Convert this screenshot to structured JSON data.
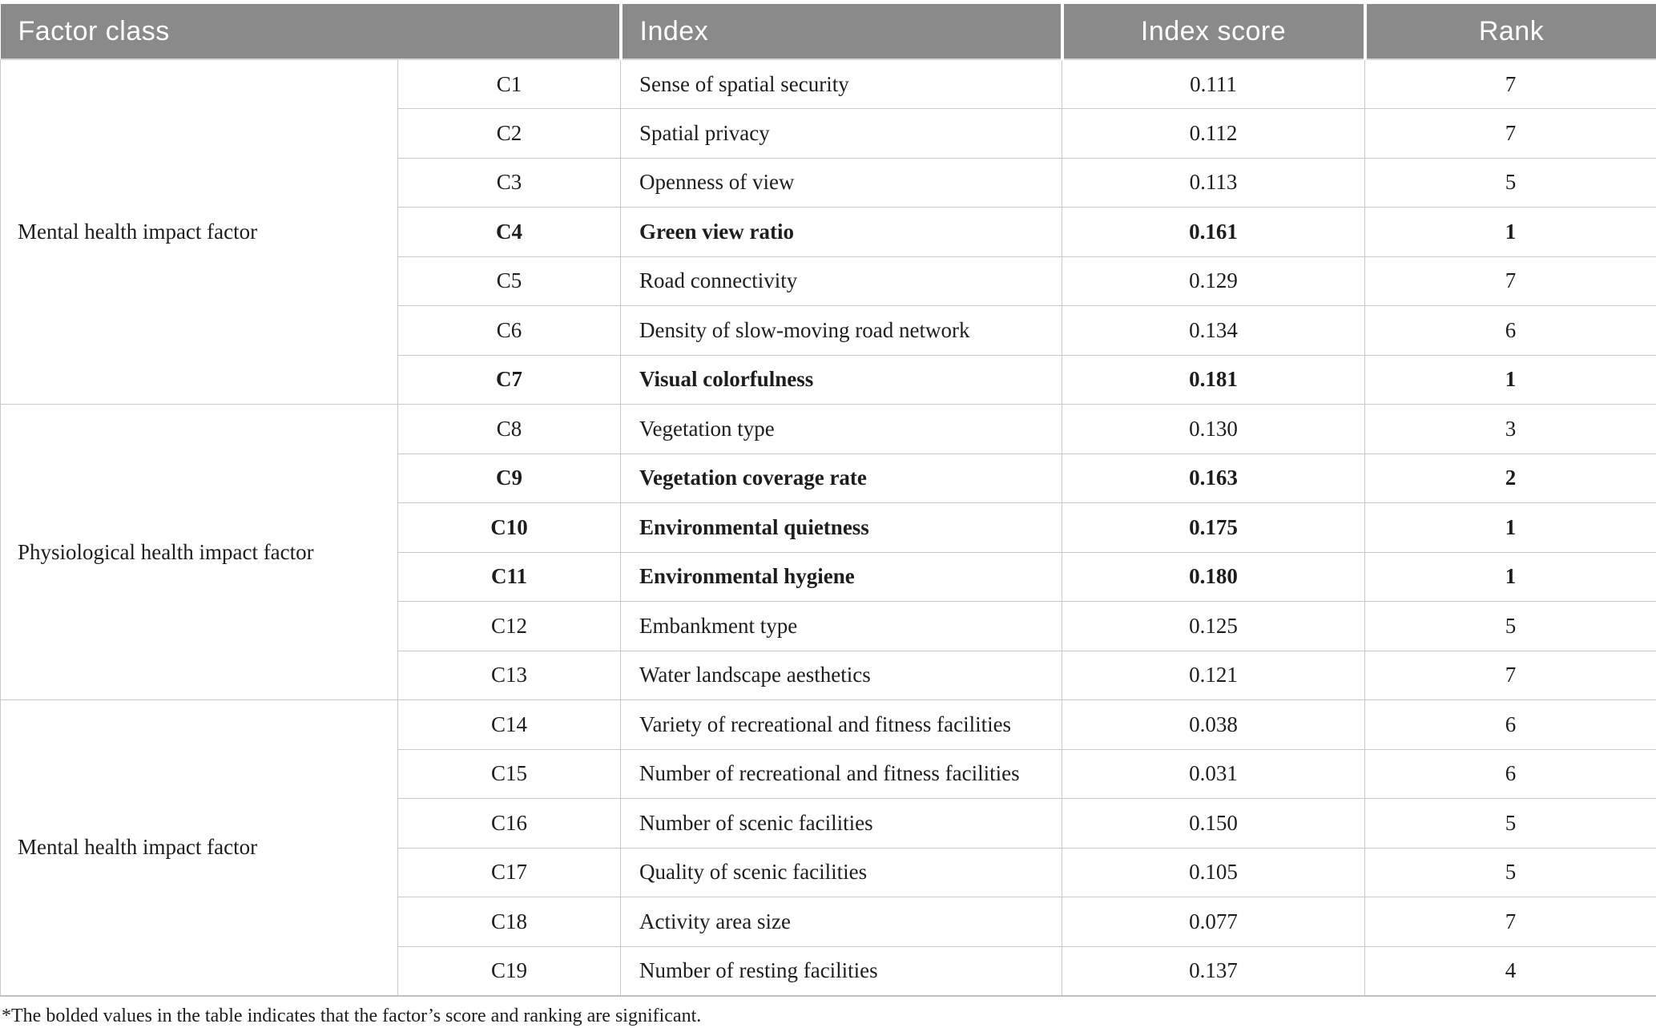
{
  "header": {
    "factor_class": "Factor class",
    "index": "Index",
    "index_score": "Index score",
    "rank": "Rank"
  },
  "groups": [
    {
      "label": "Mental health impact factor",
      "rows": [
        {
          "code": "C1",
          "index": "Sense of spatial security",
          "score": "0.111",
          "rank": "7",
          "bold": false
        },
        {
          "code": "C2",
          "index": "Spatial privacy",
          "score": "0.112",
          "rank": "7",
          "bold": false
        },
        {
          "code": "C3",
          "index": "Openness of view",
          "score": "0.113",
          "rank": "5",
          "bold": false
        },
        {
          "code": "C4",
          "index": "Green view ratio",
          "score": "0.161",
          "rank": "1",
          "bold": true
        },
        {
          "code": "C5",
          "index": "Road connectivity",
          "score": "0.129",
          "rank": "7",
          "bold": false
        },
        {
          "code": "C6",
          "index": "Density of slow-moving road network",
          "score": "0.134",
          "rank": "6",
          "bold": false
        },
        {
          "code": "C7",
          "index": "Visual colorfulness",
          "score": "0.181",
          "rank": "1",
          "bold": true
        }
      ]
    },
    {
      "label": "Physiological health impact factor",
      "rows": [
        {
          "code": "C8",
          "index": "Vegetation type",
          "score": "0.130",
          "rank": "3",
          "bold": false
        },
        {
          "code": "C9",
          "index": "Vegetation coverage rate",
          "score": "0.163",
          "rank": "2",
          "bold": true
        },
        {
          "code": "C10",
          "index": "Environmental quietness",
          "score": "0.175",
          "rank": "1",
          "bold": true
        },
        {
          "code": "C11",
          "index": "Environmental hygiene",
          "score": "0.180",
          "rank": "1",
          "bold": true
        },
        {
          "code": "C12",
          "index": "Embankment type",
          "score": "0.125",
          "rank": "5",
          "bold": false
        },
        {
          "code": "C13",
          "index": "Water landscape aesthetics",
          "score": "0.121",
          "rank": "7",
          "bold": false
        }
      ]
    },
    {
      "label": "Mental health impact factor",
      "rows": [
        {
          "code": "C14",
          "index": "Variety of recreational and fitness facilities",
          "score": "0.038",
          "rank": "6",
          "bold": false
        },
        {
          "code": "C15",
          "index": "Number of recreational and fitness facilities",
          "score": "0.031",
          "rank": "6",
          "bold": false
        },
        {
          "code": "C16",
          "index": "Number of scenic facilities",
          "score": "0.150",
          "rank": "5",
          "bold": false
        },
        {
          "code": "C17",
          "index": "Quality of scenic facilities",
          "score": "0.105",
          "rank": "5",
          "bold": false
        },
        {
          "code": "C18",
          "index": "Activity area size",
          "score": "0.077",
          "rank": "7",
          "bold": false
        },
        {
          "code": "C19",
          "index": "Number of resting facilities",
          "score": "0.137",
          "rank": "4",
          "bold": false
        }
      ]
    }
  ],
  "footnote": "*The bolded values in the table indicates that the factor’s score and ranking are significant.",
  "colors": {
    "header_bg": "#8a8a8a",
    "header_fg": "#ffffff",
    "line": "#c9c9c9",
    "text": "#1d1d1b"
  }
}
